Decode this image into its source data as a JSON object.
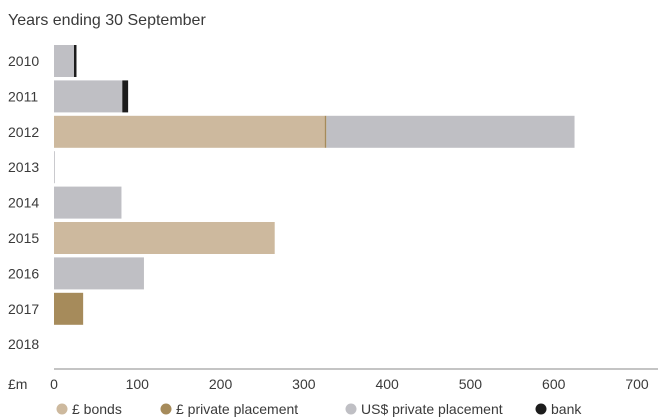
{
  "chart_data": {
    "type": "bar",
    "orientation": "horizontal",
    "stacked": true,
    "title": "Years ending 30 September",
    "xlabel": "£m",
    "ylabel": "",
    "xlim": [
      0,
      700
    ],
    "xticks": [
      0,
      100,
      200,
      300,
      400,
      500,
      600,
      700
    ],
    "grid": false,
    "legend_position": "bottom",
    "categories": [
      "2010",
      "2011",
      "2012",
      "2013",
      "2014",
      "2015",
      "2016",
      "2017",
      "2018"
    ],
    "series": [
      {
        "name": "£ bonds",
        "color": "#cdb99e",
        "values": [
          0,
          0,
          325,
          0,
          0,
          265,
          0,
          0,
          0
        ]
      },
      {
        "name": "£ private placement",
        "color": "#a68b5b",
        "values": [
          0,
          0,
          2,
          0,
          0,
          0,
          0,
          35,
          0
        ]
      },
      {
        "name": "US$ private placement",
        "color": "#bfbfc4",
        "values": [
          24,
          82,
          298,
          1,
          81,
          0,
          108,
          0,
          0
        ]
      },
      {
        "name": "bank",
        "color": "#1c1c1c",
        "values": [
          3,
          7,
          0,
          0,
          0,
          0,
          0,
          0,
          0
        ]
      }
    ]
  }
}
